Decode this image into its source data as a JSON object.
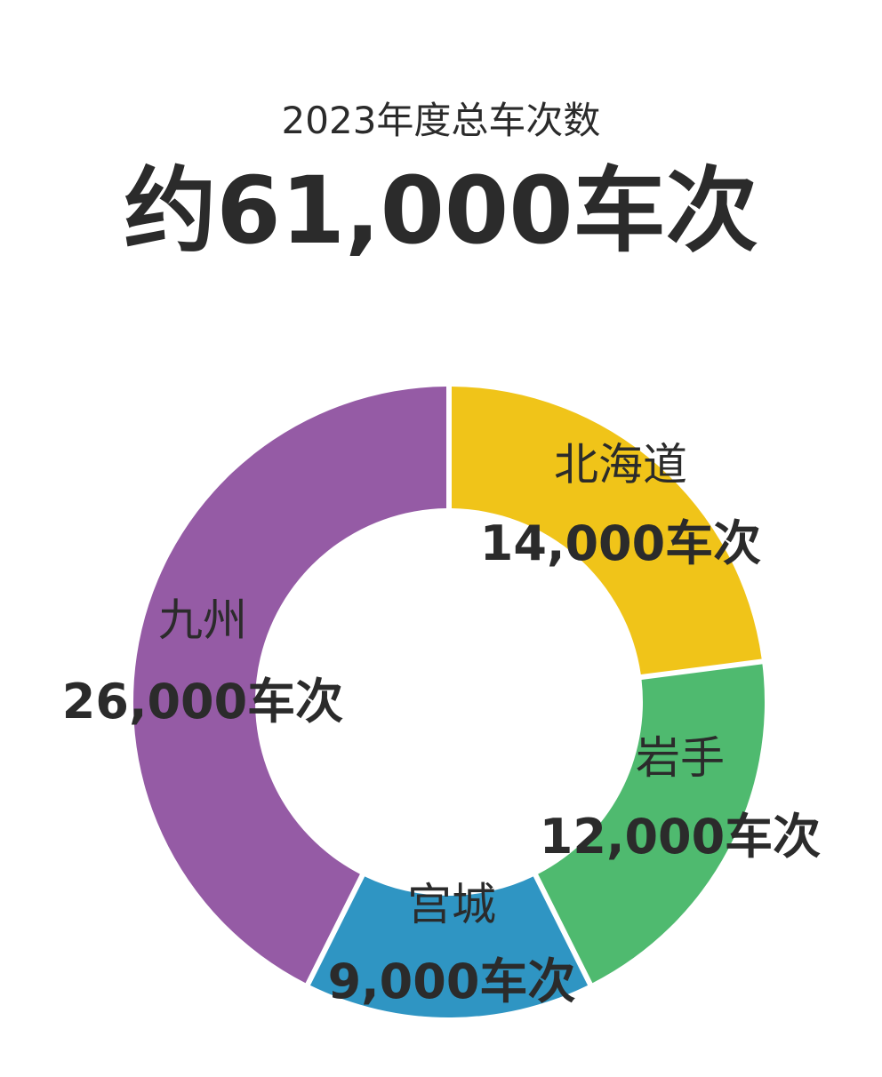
{
  "header": {
    "subtitle": "2023年度总车次数",
    "headline": "约61,000车次"
  },
  "chart_data": {
    "type": "pie",
    "variant": "donut",
    "segments": [
      {
        "name": "北海道",
        "value": 14000,
        "label": "14,000车次",
        "color": "#F0C419"
      },
      {
        "name": "岩手",
        "value": 12000,
        "label": "12,000车次",
        "color": "#4FBA6F"
      },
      {
        "name": "宫城",
        "value": 9000,
        "label": "9,000车次",
        "color": "#2F95C3"
      },
      {
        "name": "九州",
        "value": 26000,
        "label": "26,000车次",
        "color": "#955BA5"
      }
    ],
    "total": 61000,
    "legend": "none"
  }
}
